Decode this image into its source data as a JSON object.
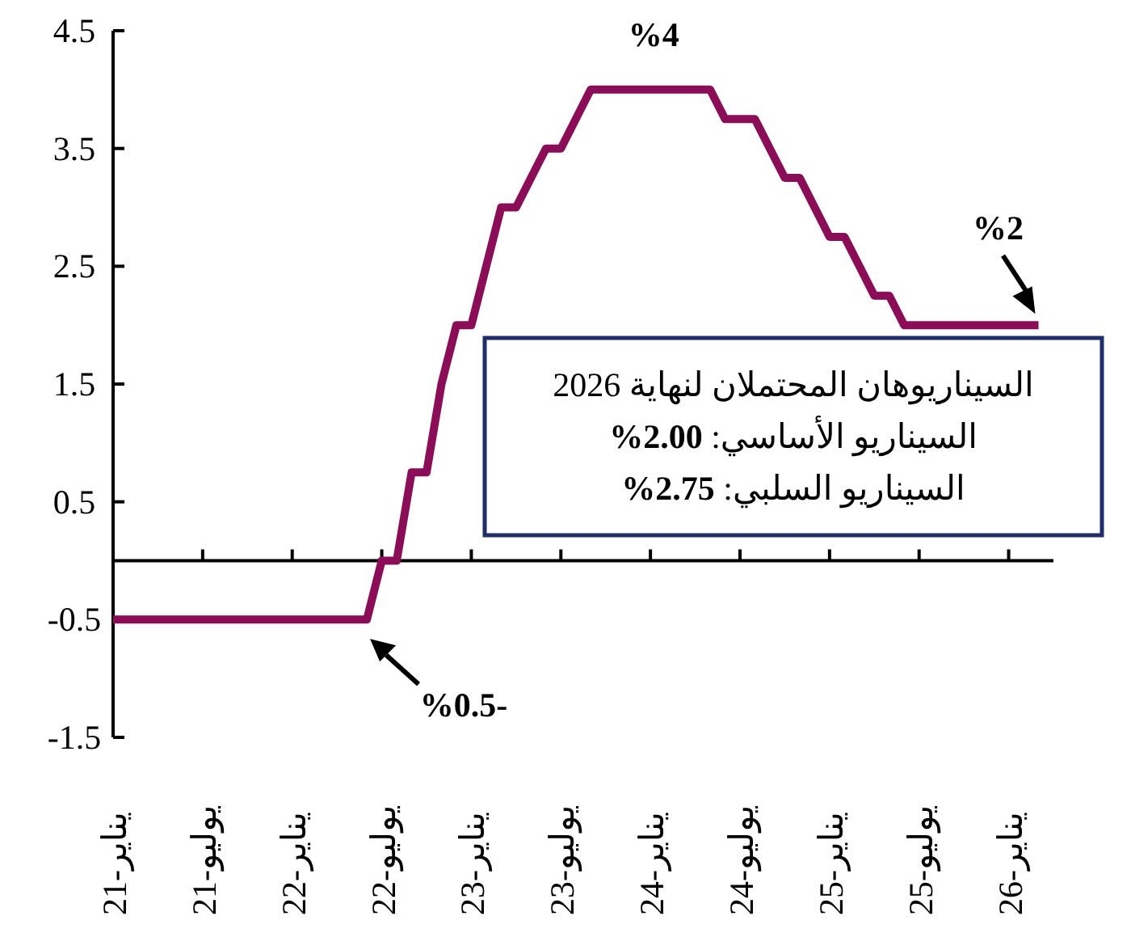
{
  "chart_data": {
    "type": "line",
    "categories": [
      "يناير-21",
      null,
      null,
      null,
      null,
      null,
      "يوليو-21",
      null,
      null,
      null,
      null,
      null,
      "يناير-22",
      null,
      null,
      null,
      null,
      null,
      "يوليو-22",
      null,
      null,
      null,
      null,
      null,
      "يناير-23",
      null,
      null,
      null,
      null,
      null,
      "يوليو-23",
      null,
      null,
      null,
      null,
      null,
      "يناير-24",
      null,
      null,
      null,
      null,
      null,
      "يوليو-24",
      null,
      null,
      null,
      null,
      null,
      "يناير-25",
      null,
      null,
      null,
      null,
      null,
      "يوليو-25",
      null,
      null,
      null,
      null,
      null,
      "يناير-26",
      null,
      null
    ],
    "series": [
      {
        "color": "#8b0d57",
        "values": [
          -0.5,
          -0.5,
          -0.5,
          -0.5,
          -0.5,
          -0.5,
          -0.5,
          -0.5,
          -0.5,
          -0.5,
          -0.5,
          -0.5,
          -0.5,
          -0.5,
          -0.5,
          -0.5,
          -0.5,
          -0.5,
          0,
          0,
          0.75,
          0.75,
          1.5,
          2.0,
          2.0,
          2.5,
          3.0,
          3.0,
          3.25,
          3.5,
          3.5,
          3.75,
          4,
          4,
          4,
          4,
          4,
          4,
          4,
          4,
          4,
          3.75,
          3.75,
          3.75,
          3.5,
          3.25,
          3.25,
          3.0,
          2.75,
          2.75,
          2.5,
          2.25,
          2.25,
          2,
          2,
          2,
          2,
          2,
          2,
          2,
          2,
          2,
          2
        ]
      }
    ],
    "ylim": [
      -1.5,
      4.5
    ],
    "yticks": [
      -1.5,
      -0.5,
      0.5,
      1.5,
      2.5,
      3.5,
      4.5
    ],
    "marker": "none",
    "line_style": "solid",
    "annotations": [
      {
        "text": "%4",
        "x": "يناير-24",
        "y": 4
      },
      {
        "text": "%2",
        "y": 2
      },
      "%0.5-",
      "السيناريوهان المحتملان لنهاية 2026",
      "السيناريو الأساسي: %2.00",
      "السيناريو السلبي: %2.75"
    ]
  }
}
